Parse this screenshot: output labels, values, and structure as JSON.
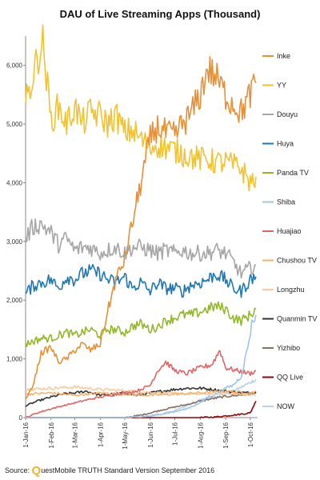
{
  "chart_data": {
    "type": "line",
    "title": "DAU of Live Streaming Apps (Thousand)",
    "xlabel": "",
    "ylabel": "",
    "ylim": [
      0,
      6500
    ],
    "yticks": [
      0,
      1000,
      2000,
      3000,
      4000,
      5000,
      6000
    ],
    "ytick_labels": [
      "0",
      "1,000",
      "2,000",
      "3,000",
      "4,000",
      "5,000",
      "6,000"
    ],
    "xlim": [
      "2016-01-01",
      "2016-10-10"
    ],
    "xticks": [
      "2016-01-01",
      "2016-02-01",
      "2016-03-01",
      "2016-04-01",
      "2016-05-01",
      "2016-06-01",
      "2016-07-01",
      "2016-08-01",
      "2016-09-01",
      "2016-10-01"
    ],
    "xtick_labels": [
      "1-Jan-16",
      "1-Feb-16",
      "1-Mar-16",
      "1-Apr-16",
      "1-May-16",
      "1-Jun-16",
      "1-Jul-16",
      "1-Aug-16",
      "1-Sep-16",
      "1-Oct-16"
    ],
    "grid": false,
    "legend_position": "right",
    "series": [
      {
        "name": "Inke",
        "color": "#e69138",
        "x": [
          "2016-01-01",
          "2016-01-10",
          "2016-01-20",
          "2016-02-01",
          "2016-02-10",
          "2016-02-20",
          "2016-03-01",
          "2016-03-10",
          "2016-03-20",
          "2016-04-01",
          "2016-04-10",
          "2016-04-20",
          "2016-05-01",
          "2016-05-10",
          "2016-05-20",
          "2016-06-01",
          "2016-06-10",
          "2016-06-20",
          "2016-07-01",
          "2016-07-10",
          "2016-07-20",
          "2016-08-01",
          "2016-08-10",
          "2016-08-20",
          "2016-09-01",
          "2016-09-10",
          "2016-09-20",
          "2016-10-01",
          "2016-10-08"
        ],
        "y": [
          300,
          550,
          1100,
          1200,
          950,
          1000,
          1150,
          1250,
          1150,
          1250,
          1800,
          2350,
          2700,
          3300,
          3950,
          4750,
          4950,
          4850,
          4800,
          5000,
          5150,
          5500,
          5950,
          5800,
          5500,
          5350,
          5200,
          5500,
          5700
        ]
      },
      {
        "name": "YY",
        "color": "#f1c232",
        "x": [
          "2016-01-01",
          "2016-01-08",
          "2016-01-15",
          "2016-01-22",
          "2016-02-01",
          "2016-02-10",
          "2016-02-20",
          "2016-03-01",
          "2016-03-10",
          "2016-03-20",
          "2016-04-01",
          "2016-04-10",
          "2016-04-20",
          "2016-05-01",
          "2016-05-10",
          "2016-05-20",
          "2016-06-01",
          "2016-06-10",
          "2016-06-20",
          "2016-07-01",
          "2016-07-10",
          "2016-07-20",
          "2016-08-01",
          "2016-08-10",
          "2016-08-20",
          "2016-09-01",
          "2016-09-10",
          "2016-09-20",
          "2016-10-01",
          "2016-10-08"
        ],
        "y": [
          5350,
          5700,
          6100,
          6400,
          5050,
          5300,
          5000,
          5300,
          5000,
          5200,
          5150,
          5000,
          5150,
          4850,
          4900,
          4750,
          4600,
          4650,
          4600,
          4550,
          4500,
          4450,
          4400,
          4400,
          4350,
          4350,
          4300,
          4250,
          4000,
          4100
        ]
      },
      {
        "name": "Douyu",
        "color": "#a6a6a6",
        "x": [
          "2016-01-01",
          "2016-01-10",
          "2016-01-20",
          "2016-02-01",
          "2016-02-10",
          "2016-02-20",
          "2016-03-01",
          "2016-03-10",
          "2016-03-20",
          "2016-04-01",
          "2016-04-10",
          "2016-04-20",
          "2016-05-01",
          "2016-05-10",
          "2016-05-20",
          "2016-06-01",
          "2016-06-10",
          "2016-06-20",
          "2016-07-01",
          "2016-07-10",
          "2016-07-20",
          "2016-08-01",
          "2016-08-10",
          "2016-08-20",
          "2016-09-01",
          "2016-09-10",
          "2016-09-20",
          "2016-10-01",
          "2016-10-08"
        ],
        "y": [
          3050,
          3250,
          3300,
          3150,
          2950,
          3050,
          2850,
          2900,
          2900,
          2800,
          2850,
          2900,
          2800,
          2900,
          2900,
          2850,
          2800,
          2850,
          2800,
          2850,
          2800,
          2800,
          2800,
          2850,
          2800,
          2650,
          2450,
          2550,
          2600
        ]
      },
      {
        "name": "Huya",
        "color": "#1f77b4",
        "x": [
          "2016-01-01",
          "2016-01-10",
          "2016-01-20",
          "2016-02-01",
          "2016-02-10",
          "2016-02-20",
          "2016-03-01",
          "2016-03-10",
          "2016-03-20",
          "2016-04-01",
          "2016-04-10",
          "2016-04-20",
          "2016-05-01",
          "2016-05-10",
          "2016-05-20",
          "2016-06-01",
          "2016-06-10",
          "2016-06-20",
          "2016-07-01",
          "2016-07-10",
          "2016-07-20",
          "2016-08-01",
          "2016-08-10",
          "2016-08-20",
          "2016-09-01",
          "2016-09-10",
          "2016-09-20",
          "2016-10-01",
          "2016-10-08"
        ],
        "y": [
          2100,
          2250,
          2300,
          2350,
          2200,
          2400,
          2350,
          2450,
          2500,
          2450,
          2350,
          2300,
          2400,
          2200,
          2300,
          2150,
          2300,
          2200,
          2200,
          2150,
          2250,
          2300,
          2350,
          2450,
          2350,
          2200,
          2150,
          2350,
          2400
        ]
      },
      {
        "name": "Panda TV",
        "color": "#92b828",
        "x": [
          "2016-01-01",
          "2016-01-10",
          "2016-01-20",
          "2016-02-01",
          "2016-02-10",
          "2016-02-20",
          "2016-03-01",
          "2016-03-10",
          "2016-03-20",
          "2016-04-01",
          "2016-04-10",
          "2016-04-20",
          "2016-05-01",
          "2016-05-10",
          "2016-05-20",
          "2016-06-01",
          "2016-06-10",
          "2016-06-20",
          "2016-07-01",
          "2016-07-10",
          "2016-07-20",
          "2016-08-01",
          "2016-08-10",
          "2016-08-20",
          "2016-09-01",
          "2016-09-10",
          "2016-09-20",
          "2016-10-01",
          "2016-10-08"
        ],
        "y": [
          1250,
          1300,
          1350,
          1350,
          1400,
          1450,
          1400,
          1450,
          1500,
          1400,
          1500,
          1500,
          1450,
          1550,
          1600,
          1500,
          1550,
          1650,
          1700,
          1750,
          1750,
          1800,
          1850,
          1900,
          1850,
          1700,
          1650,
          1750,
          1850
        ]
      },
      {
        "name": "Shiba",
        "color": "#9fc5e8",
        "x": [
          "2016-01-01",
          "2016-02-01",
          "2016-03-01",
          "2016-04-01",
          "2016-05-01",
          "2016-05-20",
          "2016-06-01",
          "2016-06-15",
          "2016-07-01",
          "2016-07-15",
          "2016-08-01",
          "2016-08-10",
          "2016-08-20",
          "2016-09-01",
          "2016-09-10",
          "2016-09-20",
          "2016-09-28",
          "2016-10-03",
          "2016-10-08"
        ],
        "y": [
          0,
          0,
          0,
          0,
          0,
          10,
          30,
          60,
          100,
          150,
          250,
          350,
          400,
          500,
          550,
          700,
          1200,
          1600,
          1750
        ]
      },
      {
        "name": "Huajiao",
        "color": "#e06666",
        "x": [
          "2016-01-01",
          "2016-01-15",
          "2016-02-01",
          "2016-02-15",
          "2016-03-01",
          "2016-03-15",
          "2016-04-01",
          "2016-04-15",
          "2016-05-01",
          "2016-05-15",
          "2016-06-01",
          "2016-06-10",
          "2016-06-20",
          "2016-07-01",
          "2016-07-15",
          "2016-08-01",
          "2016-08-15",
          "2016-08-25",
          "2016-09-01",
          "2016-09-15",
          "2016-10-01",
          "2016-10-08"
        ],
        "y": [
          0,
          80,
          150,
          200,
          250,
          300,
          350,
          380,
          420,
          450,
          550,
          800,
          950,
          800,
          750,
          850,
          900,
          1150,
          850,
          800,
          750,
          800
        ]
      },
      {
        "name": "Chushou TV",
        "color": "#f6b26b",
        "x": [
          "2016-01-01",
          "2016-02-01",
          "2016-03-01",
          "2016-04-01",
          "2016-05-01",
          "2016-06-01",
          "2016-07-01",
          "2016-08-01",
          "2016-09-01",
          "2016-10-01",
          "2016-10-08"
        ],
        "y": [
          400,
          420,
          380,
          420,
          400,
          380,
          400,
          420,
          450,
          420,
          450
        ]
      },
      {
        "name": "Longzhu",
        "color": "#f9cb9c",
        "x": [
          "2016-01-01",
          "2016-02-01",
          "2016-03-01",
          "2016-04-01",
          "2016-05-01",
          "2016-06-01",
          "2016-07-01",
          "2016-08-01",
          "2016-09-01",
          "2016-10-01",
          "2016-10-08"
        ],
        "y": [
          480,
          500,
          520,
          480,
          460,
          430,
          410,
          400,
          420,
          380,
          400
        ]
      },
      {
        "name": "Quanmin TV",
        "color": "#333333",
        "x": [
          "2016-01-01",
          "2016-01-15",
          "2016-02-01",
          "2016-02-15",
          "2016-03-01",
          "2016-03-15",
          "2016-04-01",
          "2016-04-15",
          "2016-05-01",
          "2016-05-15",
          "2016-06-01",
          "2016-06-15",
          "2016-07-01",
          "2016-07-15",
          "2016-08-01",
          "2016-08-15",
          "2016-09-01",
          "2016-09-15",
          "2016-10-01",
          "2016-10-08"
        ],
        "y": [
          200,
          280,
          350,
          400,
          420,
          450,
          380,
          400,
          420,
          380,
          420,
          450,
          480,
          500,
          500,
          480,
          450,
          430,
          420,
          440
        ]
      },
      {
        "name": "Yizhibo",
        "color": "#8c6d5e",
        "x": [
          "2016-01-01",
          "2016-02-01",
          "2016-03-01",
          "2016-04-01",
          "2016-05-01",
          "2016-05-20",
          "2016-06-01",
          "2016-06-15",
          "2016-07-01",
          "2016-07-15",
          "2016-08-01",
          "2016-08-15",
          "2016-09-01",
          "2016-09-15",
          "2016-10-01",
          "2016-10-08"
        ],
        "y": [
          0,
          0,
          0,
          0,
          0,
          40,
          80,
          130,
          180,
          220,
          280,
          320,
          360,
          380,
          400,
          420
        ]
      },
      {
        "name": "QQ Live",
        "color": "#990000",
        "x": [
          "2016-01-01",
          "2016-03-01",
          "2016-05-01",
          "2016-07-01",
          "2016-08-01",
          "2016-08-20",
          "2016-09-01",
          "2016-09-15",
          "2016-10-01",
          "2016-10-08"
        ],
        "y": [
          0,
          0,
          0,
          0,
          0,
          10,
          30,
          50,
          80,
          280
        ]
      },
      {
        "name": "NOW",
        "color": "#b4d2ea",
        "x": [
          "2016-01-01",
          "2016-03-01",
          "2016-05-01",
          "2016-06-01",
          "2016-06-15",
          "2016-07-01",
          "2016-07-15",
          "2016-08-01",
          "2016-08-15",
          "2016-09-01",
          "2016-09-15",
          "2016-10-01",
          "2016-10-08"
        ],
        "y": [
          0,
          0,
          0,
          20,
          60,
          120,
          200,
          300,
          350,
          400,
          480,
          600,
          650
        ]
      }
    ]
  },
  "source": {
    "prefix": "Source:",
    "logo_letter": "Q",
    "text": "uestMobile TRUTH Standard Version September 2016"
  }
}
